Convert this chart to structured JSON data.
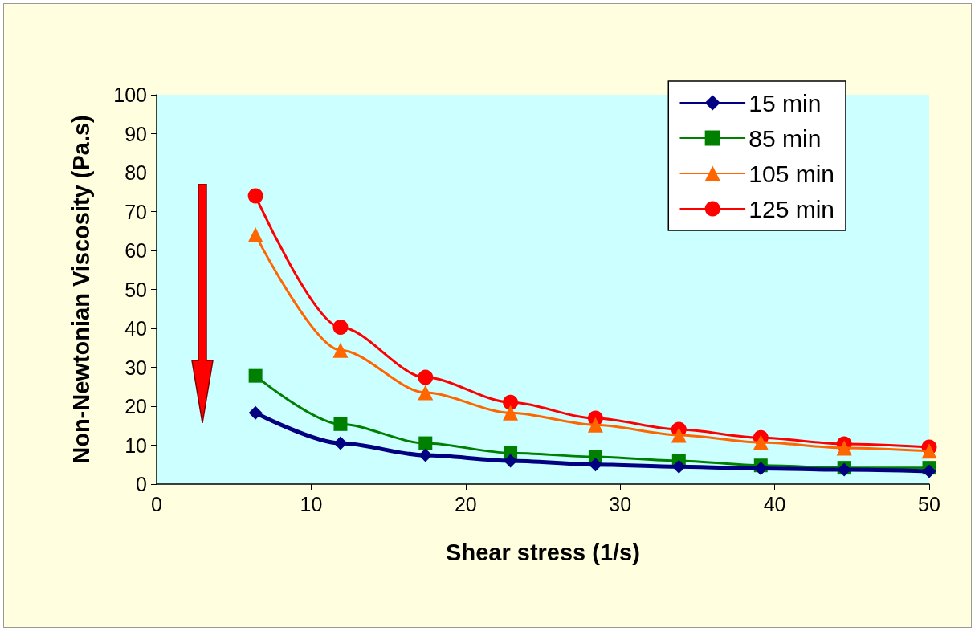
{
  "chart_data": {
    "type": "line",
    "xlabel": "Shear stress (1/s)",
    "ylabel": "Non-Newtonian Viscosity (Pa.s)",
    "x": [
      6.4,
      11.9,
      17.4,
      22.9,
      28.4,
      33.8,
      39.1,
      44.5,
      50
    ],
    "series": [
      {
        "name": "15 min",
        "color": "#000080",
        "marker": "diamond",
        "values": [
          18.3,
          10.5,
          7.4,
          6,
          5,
          4.5,
          4,
          3.7,
          3.3
        ]
      },
      {
        "name": "85 min",
        "color": "#008000",
        "marker": "square",
        "values": [
          27.8,
          15.4,
          10.5,
          8,
          7,
          6,
          4.8,
          4.2,
          4.2
        ]
      },
      {
        "name": "105 min",
        "color": "#ff6600",
        "marker": "triangle",
        "values": [
          64,
          34.4,
          23.5,
          18.3,
          15.2,
          12.6,
          10.7,
          9.3,
          8.5
        ]
      },
      {
        "name": "125 min",
        "color": "#ff0000",
        "marker": "circle",
        "values": [
          74,
          40.3,
          27.4,
          21,
          16.9,
          14,
          11.9,
          10.3,
          9.5
        ]
      }
    ],
    "xlim": [
      0,
      50
    ],
    "xticks": [
      0,
      10,
      20,
      30,
      40,
      50
    ],
    "ylim": [
      0,
      100
    ],
    "yticks": [
      0,
      10,
      20,
      30,
      40,
      50,
      60,
      70,
      80,
      90,
      100
    ],
    "grid": false,
    "legend": "top right",
    "line_style": "solid"
  }
}
